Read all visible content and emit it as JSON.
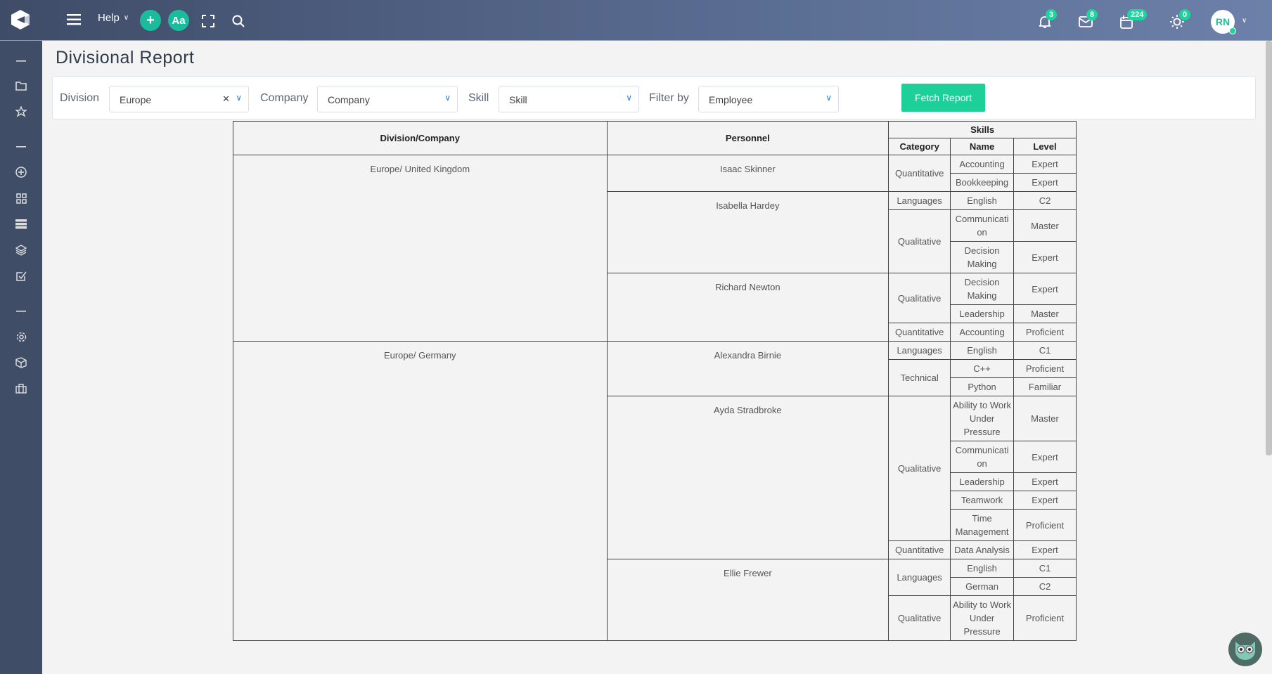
{
  "topbar": {
    "help_label": "Help",
    "add_icon": "plus-icon",
    "font_label": "Aa",
    "notifications": "3",
    "messages": "8",
    "calendar": "224",
    "tasks": "0",
    "avatar_initials": "RN",
    "accent": "#1abc9c"
  },
  "sidebar": {
    "items": [
      "collapse",
      "folder",
      "star",
      "collapse",
      "add-circle",
      "grid",
      "list",
      "layers",
      "checkbox",
      "collapse",
      "gear",
      "box",
      "briefcase"
    ]
  },
  "page": {
    "title": "Divisional Report"
  },
  "filters": {
    "division_label": "Division",
    "division_value": "Europe",
    "company_label": "Company",
    "company_value": "Company",
    "skill_label": "Skill",
    "skill_value": "Skill",
    "filterby_label": "Filter by",
    "filterby_value": "Employee",
    "fetch_label": "Fetch Report"
  },
  "table": {
    "headers": {
      "division": "Division/Company",
      "personnel": "Personnel",
      "skills": "Skills",
      "category": "Category",
      "name": "Name",
      "level": "Level"
    },
    "divisions": [
      {
        "name": "Europe/ United Kingdom",
        "personnel": [
          {
            "name": "Isaac Skinner",
            "categories": [
              {
                "category": "Quantitative",
                "skills": [
                  [
                    "Accounting",
                    "Expert"
                  ],
                  [
                    "Bookkeeping",
                    "Expert"
                  ]
                ]
              }
            ]
          },
          {
            "name": "Isabella Hardey",
            "categories": [
              {
                "category": "Languages",
                "skills": [
                  [
                    "English",
                    "C2"
                  ]
                ]
              },
              {
                "category": "Qualitative",
                "skills": [
                  [
                    "Communication",
                    "Master"
                  ],
                  [
                    "Decision Making",
                    "Expert"
                  ]
                ]
              }
            ]
          },
          {
            "name": "Richard Newton",
            "categories": [
              {
                "category": "Qualitative",
                "skills": [
                  [
                    "Decision Making",
                    "Expert"
                  ],
                  [
                    "Leadership",
                    "Master"
                  ]
                ]
              },
              {
                "category": "Quantitative",
                "skills": [
                  [
                    "Accounting",
                    "Proficient"
                  ]
                ]
              }
            ]
          }
        ]
      },
      {
        "name": "Europe/ Germany",
        "personnel": [
          {
            "name": "Alexandra Birnie",
            "categories": [
              {
                "category": "Languages",
                "skills": [
                  [
                    "English",
                    "C1"
                  ]
                ]
              },
              {
                "category": "Technical",
                "skills": [
                  [
                    "C++",
                    "Proficient"
                  ],
                  [
                    "Python",
                    "Familiar"
                  ]
                ]
              }
            ]
          },
          {
            "name": "Ayda Stradbroke",
            "categories": [
              {
                "category": "Qualitative",
                "skills": [
                  [
                    "Ability to Work Under Pressure",
                    "Master"
                  ],
                  [
                    "Communication",
                    "Expert"
                  ],
                  [
                    "Leadership",
                    "Expert"
                  ],
                  [
                    "Teamwork",
                    "Expert"
                  ],
                  [
                    "Time Management",
                    "Proficient"
                  ]
                ]
              },
              {
                "category": "Quantitative",
                "skills": [
                  [
                    "Data Analysis",
                    "Expert"
                  ]
                ]
              }
            ]
          },
          {
            "name": "Ellie Frewer",
            "categories": [
              {
                "category": "Languages",
                "skills": [
                  [
                    "English",
                    "C1"
                  ],
                  [
                    "German",
                    "C2"
                  ]
                ]
              },
              {
                "category": "Qualitative",
                "skills": [
                  [
                    "Ability to Work Under Pressure",
                    "Proficient"
                  ]
                ]
              }
            ]
          }
        ]
      }
    ]
  }
}
